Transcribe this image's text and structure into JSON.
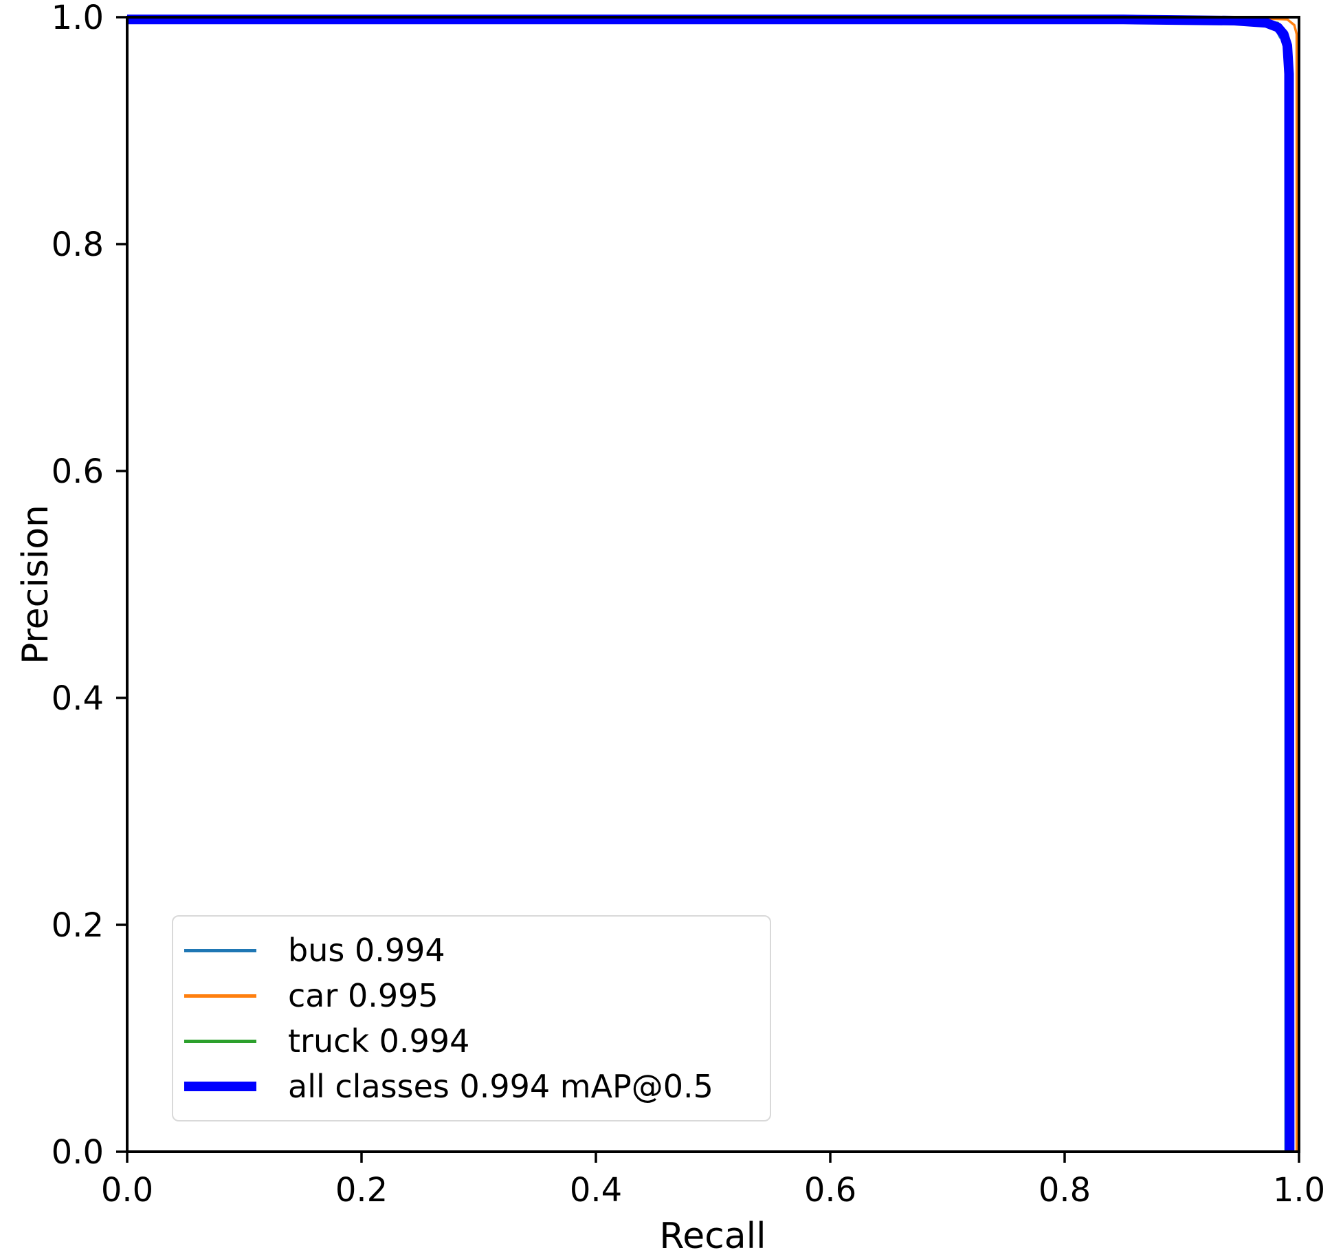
{
  "chart_data": {
    "type": "line",
    "title": "",
    "xlabel": "Recall",
    "ylabel": "Precision",
    "xlim": [
      0.0,
      1.0
    ],
    "ylim": [
      0.0,
      1.0
    ],
    "x_ticks": [
      "0.0",
      "0.2",
      "0.4",
      "0.6",
      "0.8",
      "1.0"
    ],
    "y_ticks": [
      "0.0",
      "0.2",
      "0.4",
      "0.6",
      "0.8",
      "1.0"
    ],
    "grid": false,
    "legend_position": "lower left",
    "series": [
      {
        "name": "bus",
        "label": "bus 0.994",
        "ap": 0.994,
        "color": "#1f77b4",
        "linewidth": 3.5,
        "points": [
          [
            0.0,
            0.998
          ],
          [
            0.5,
            0.998
          ],
          [
            0.9,
            0.998
          ],
          [
            0.955,
            0.997
          ],
          [
            0.975,
            0.995
          ],
          [
            0.981,
            0.988
          ],
          [
            0.984,
            0.982
          ],
          [
            0.9885,
            0.981
          ],
          [
            0.9885,
            0.0
          ]
        ]
      },
      {
        "name": "car",
        "label": "car 0.995",
        "ap": 0.995,
        "color": "#ff7f0e",
        "linewidth": 3.5,
        "points": [
          [
            0.0,
            0.999
          ],
          [
            0.5,
            0.999
          ],
          [
            0.9,
            0.999
          ],
          [
            0.97,
            0.999
          ],
          [
            0.99,
            0.998
          ],
          [
            0.996,
            0.993
          ],
          [
            0.998,
            0.985
          ],
          [
            0.998,
            0.0
          ]
        ]
      },
      {
        "name": "truck",
        "label": "truck 0.994",
        "ap": 0.994,
        "color": "#2ca02c",
        "linewidth": 3.5,
        "points": [
          [
            0.0,
            0.998
          ],
          [
            0.5,
            0.998
          ],
          [
            0.9,
            0.998
          ],
          [
            0.96,
            0.997
          ],
          [
            0.982,
            0.995
          ],
          [
            0.988,
            0.985
          ],
          [
            0.99,
            0.975
          ],
          [
            0.99,
            0.0
          ]
        ]
      },
      {
        "name": "all classes",
        "label": "all classes 0.994 mAP@0.5",
        "ap": 0.994,
        "color": "#0000ff",
        "linewidth": 14,
        "points": [
          [
            0.0,
            0.998
          ],
          [
            0.5,
            0.998
          ],
          [
            0.85,
            0.998
          ],
          [
            0.945,
            0.997
          ],
          [
            0.972,
            0.995
          ],
          [
            0.982,
            0.991
          ],
          [
            0.987,
            0.985
          ],
          [
            0.99,
            0.975
          ],
          [
            0.9915,
            0.95
          ],
          [
            0.992,
            0.0
          ]
        ]
      }
    ]
  }
}
